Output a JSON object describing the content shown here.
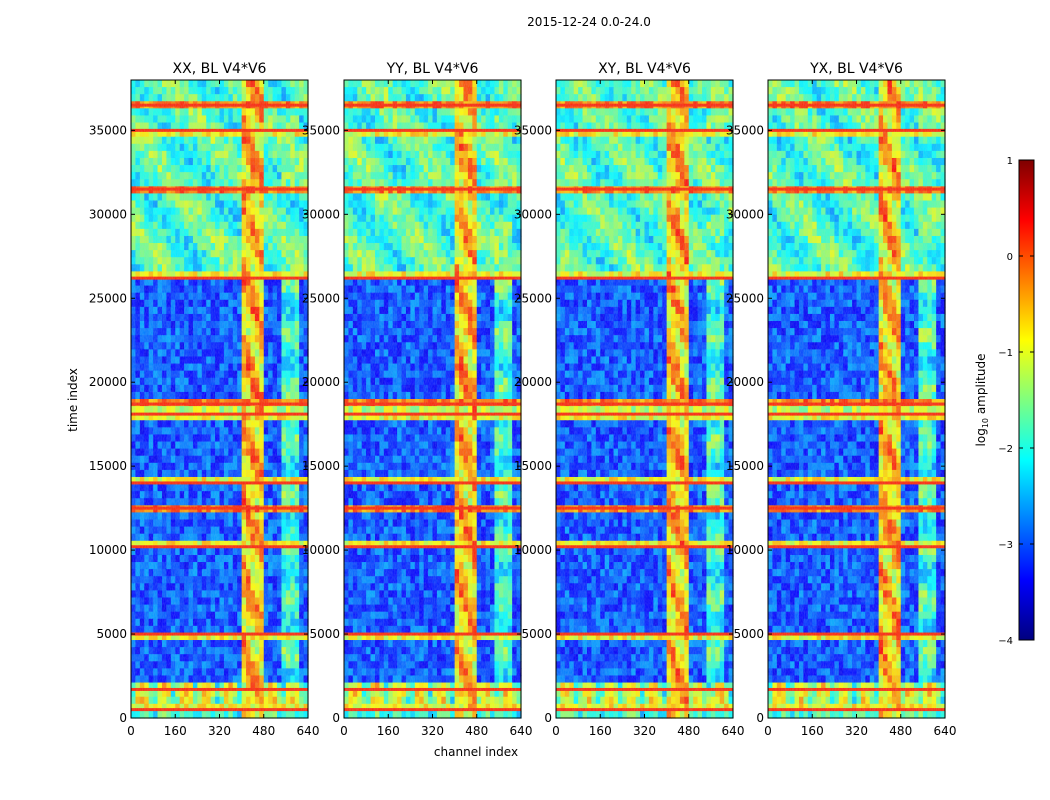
{
  "figure_title": "2015-12-24 0.0-24.0",
  "chart_data": {
    "type": "heatmap",
    "xlabel": "channel index",
    "ylabel": "time index",
    "xlim": [
      0,
      640
    ],
    "ylim": [
      0,
      38000
    ],
    "xticks": [
      "0",
      "160",
      "320",
      "480",
      "640"
    ],
    "yticks": [
      "0",
      "5000",
      "10000",
      "15000",
      "20000",
      "25000",
      "30000",
      "35000"
    ],
    "panels": [
      {
        "title": "XX, BL V4*V6"
      },
      {
        "title": "YY, BL V4*V6"
      },
      {
        "title": "XY, BL V4*V6"
      },
      {
        "title": "YX, BL V4*V6"
      }
    ],
    "colorbar": {
      "label": "log10 amplitude",
      "label_base": "log",
      "label_sub": "10",
      "label_rest": " amplitude",
      "range": [
        -4,
        1
      ],
      "ticks": [
        "1",
        "0",
        "−1",
        "−2",
        "−3",
        "−4"
      ],
      "colormap": [
        "#00007f",
        "#0000ff",
        "#007fff",
        "#00ffff",
        "#7fff7f",
        "#ffff00",
        "#ff7f00",
        "#ff0000",
        "#7f0000"
      ]
    },
    "features": {
      "bright_channel_band": [
        400,
        480
      ],
      "secondary_channel_band": [
        540,
        600
      ],
      "saturated_time_rows": [
        500,
        1700,
        5000,
        10200,
        12500,
        14000,
        18100,
        18700,
        26200,
        31500,
        35000,
        36500
      ],
      "quiet_level": -3.0,
      "band_level": -0.6,
      "upper_level": -1.8
    }
  }
}
